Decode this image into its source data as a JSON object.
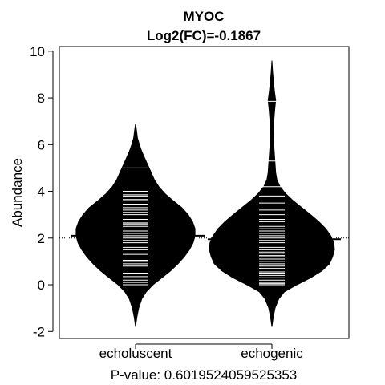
{
  "chart_data": {
    "type": "beanplot",
    "title": "MYOC",
    "subtitle": "Log2(FC)=-0.1867",
    "ylabel": "Abundance",
    "xlabel": "P-value: 0.6019524059525353",
    "ylim": [
      -2.3,
      10.2
    ],
    "yticks": [
      -2,
      0,
      2,
      4,
      6,
      8,
      10
    ],
    "overall_mean": 2.0,
    "categories": [
      "echoluscent",
      "echogenic"
    ],
    "groups": [
      {
        "name": "echoluscent",
        "mean": 2.1,
        "density_range": [
          -1.8,
          6.9
        ],
        "density": [
          [
            -1.8,
            0.0
          ],
          [
            -1.4,
            0.02
          ],
          [
            -1.0,
            0.05
          ],
          [
            -0.6,
            0.1
          ],
          [
            -0.3,
            0.17
          ],
          [
            0.0,
            0.28
          ],
          [
            0.3,
            0.42
          ],
          [
            0.6,
            0.56
          ],
          [
            0.9,
            0.68
          ],
          [
            1.2,
            0.78
          ],
          [
            1.5,
            0.86
          ],
          [
            1.8,
            0.92
          ],
          [
            2.1,
            0.95
          ],
          [
            2.4,
            0.95
          ],
          [
            2.7,
            0.91
          ],
          [
            3.0,
            0.84
          ],
          [
            3.3,
            0.74
          ],
          [
            3.6,
            0.6
          ],
          [
            3.9,
            0.47
          ],
          [
            4.2,
            0.37
          ],
          [
            4.5,
            0.3
          ],
          [
            4.8,
            0.25
          ],
          [
            5.1,
            0.2
          ],
          [
            5.4,
            0.15
          ],
          [
            5.7,
            0.1
          ],
          [
            6.0,
            0.06
          ],
          [
            6.3,
            0.03
          ],
          [
            6.6,
            0.015
          ],
          [
            6.9,
            0.0
          ]
        ],
        "observations": [
          0.0,
          0.1,
          0.2,
          0.35,
          0.5,
          0.8,
          0.9,
          1.0,
          1.05,
          1.3,
          1.5,
          1.6,
          1.7,
          1.8,
          1.9,
          2.0,
          2.1,
          2.2,
          2.3,
          2.5,
          2.6,
          2.65,
          2.8,
          3.0,
          3.1,
          3.2,
          3.3,
          3.45,
          3.6,
          3.65,
          3.8,
          3.85,
          4.0,
          5.0
        ]
      },
      {
        "name": "echogenic",
        "mean": 1.95,
        "density_range": [
          -1.8,
          9.6
        ],
        "density": [
          [
            -1.8,
            0.0
          ],
          [
            -1.4,
            0.02
          ],
          [
            -1.0,
            0.05
          ],
          [
            -0.6,
            0.11
          ],
          [
            -0.3,
            0.2
          ],
          [
            0.0,
            0.4
          ],
          [
            0.3,
            0.62
          ],
          [
            0.6,
            0.8
          ],
          [
            0.9,
            0.92
          ],
          [
            1.2,
            0.97
          ],
          [
            1.5,
            1.0
          ],
          [
            1.8,
            0.99
          ],
          [
            2.1,
            0.94
          ],
          [
            2.4,
            0.86
          ],
          [
            2.7,
            0.75
          ],
          [
            3.0,
            0.62
          ],
          [
            3.3,
            0.48
          ],
          [
            3.6,
            0.34
          ],
          [
            3.9,
            0.22
          ],
          [
            4.2,
            0.13
          ],
          [
            4.5,
            0.08
          ],
          [
            4.8,
            0.06
          ],
          [
            5.2,
            0.05
          ],
          [
            5.6,
            0.04
          ],
          [
            6.0,
            0.03
          ],
          [
            6.5,
            0.025
          ],
          [
            7.0,
            0.03
          ],
          [
            7.5,
            0.045
          ],
          [
            7.9,
            0.06
          ],
          [
            8.3,
            0.04
          ],
          [
            8.7,
            0.025
          ],
          [
            9.1,
            0.012
          ],
          [
            9.6,
            0.0
          ]
        ],
        "observations": [
          0.0,
          0.05,
          0.1,
          0.2,
          0.3,
          0.4,
          0.5,
          0.55,
          0.7,
          0.8,
          0.9,
          1.0,
          1.1,
          1.2,
          1.25,
          1.35,
          1.4,
          1.5,
          1.6,
          1.7,
          1.8,
          1.9,
          2.0,
          2.1,
          2.2,
          2.3,
          2.4,
          2.5,
          2.7,
          2.8,
          3.0,
          3.2,
          3.5,
          3.8,
          4.2,
          5.3,
          7.85
        ]
      }
    ]
  }
}
